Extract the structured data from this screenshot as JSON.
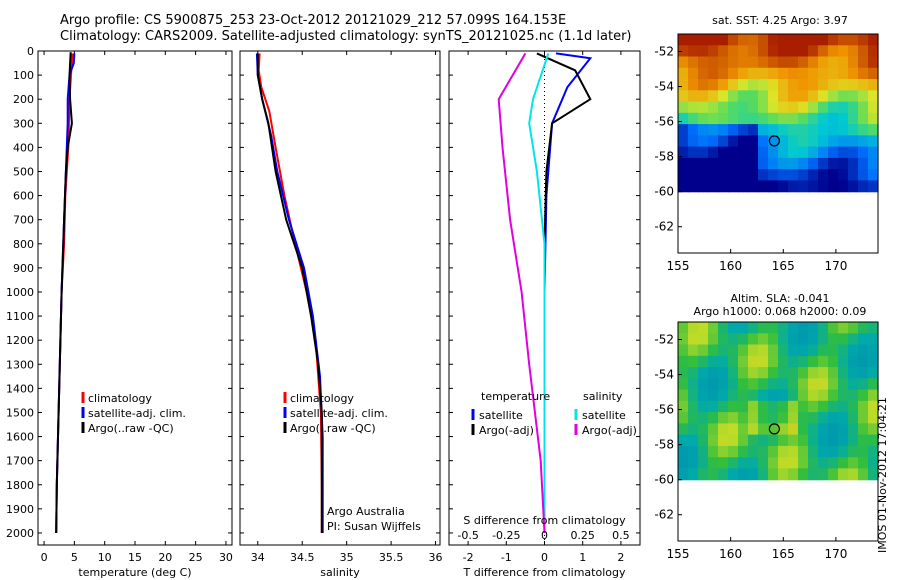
{
  "header": {
    "line1": "Argo profile: CS 5900875_253 23-Oct-2012 20121029_212 57.099S 164.153E",
    "line2": "Climatology: CARS2009. Satellite-adjusted climatology: synTS_20121025.nc (1.1d later)"
  },
  "footer_credit": "IMOS 01-Nov-2012 17:04:21",
  "colors": {
    "climatology": "#ff0000",
    "satellite": "#0000ff",
    "argo": "#000000",
    "sal_satellite": "#00e5e5",
    "sal_argo": "#e000e0"
  },
  "chart_data": [
    {
      "id": "temperature",
      "type": "line",
      "xlabel": "temperature (deg C)",
      "ylabel": "",
      "xlim": [
        -1,
        31
      ],
      "ylim": [
        2050,
        0
      ],
      "x_ticks": [
        0,
        5,
        10,
        15,
        20,
        25,
        30
      ],
      "y_ticks": [
        0,
        100,
        200,
        300,
        400,
        500,
        600,
        700,
        800,
        900,
        1000,
        1100,
        1200,
        1300,
        1400,
        1500,
        1600,
        1700,
        1800,
        1900,
        2000
      ],
      "grid": false,
      "legend": [
        "climatology",
        "satellite-adj. clim.",
        "Argo(..raw -QC)"
      ],
      "legend_placement": "lower-center",
      "series": [
        {
          "name": "climatology",
          "color": "#ff0000",
          "points": [
            [
              4.7,
              10
            ],
            [
              4.5,
              80
            ],
            [
              4.2,
              200
            ],
            [
              4.0,
              400
            ],
            [
              3.5,
              600
            ],
            [
              3.3,
              800
            ],
            [
              2.9,
              1000
            ],
            [
              2.6,
              1300
            ],
            [
              2.3,
              1600
            ],
            [
              2.1,
              1800
            ],
            [
              2.0,
              2000
            ]
          ]
        },
        {
          "name": "satellite-adj. clim.",
          "color": "#0000ff",
          "points": [
            [
              5.0,
              10
            ],
            [
              4.9,
              50
            ],
            [
              4.2,
              100
            ],
            [
              3.9,
              200
            ],
            [
              3.9,
              300
            ],
            [
              3.6,
              500
            ],
            [
              3.3,
              700
            ],
            [
              2.9,
              1000
            ],
            [
              2.6,
              1300
            ],
            [
              2.3,
              1600
            ],
            [
              2.1,
              1800
            ],
            [
              2.0,
              2000
            ]
          ]
        },
        {
          "name": "Argo(..raw -QC)",
          "color": "#000000",
          "points": [
            [
              4.4,
              5
            ],
            [
              4.2,
              100
            ],
            [
              4.3,
              200
            ],
            [
              4.6,
              300
            ],
            [
              3.9,
              400
            ],
            [
              3.6,
              500
            ],
            [
              3.3,
              700
            ],
            [
              2.9,
              1000
            ],
            [
              2.6,
              1300
            ],
            [
              2.3,
              1600
            ],
            [
              2.1,
              1800
            ],
            [
              2.0,
              2000
            ]
          ]
        }
      ]
    },
    {
      "id": "salinity",
      "type": "line",
      "xlabel": "salinity",
      "ylabel": "",
      "xlim": [
        33.8,
        36.05
      ],
      "ylim": [
        2050,
        0
      ],
      "x_ticks": [
        34,
        34.5,
        35,
        35.5,
        36
      ],
      "grid": false,
      "legend": [
        "climatology",
        "satellite-adj. clim.",
        "Argo(..raw -QC)"
      ],
      "legend_placement": "lower-center",
      "annotation": [
        "Argo Australia",
        "PI: Susan Wijffels"
      ],
      "series": [
        {
          "name": "climatology",
          "color": "#ff0000",
          "points": [
            [
              34.02,
              10
            ],
            [
              34.01,
              80
            ],
            [
              34.04,
              150
            ],
            [
              34.13,
              250
            ],
            [
              34.2,
              400
            ],
            [
              34.3,
              600
            ],
            [
              34.42,
              800
            ],
            [
              34.55,
              1000
            ],
            [
              34.65,
              1200
            ],
            [
              34.71,
              1500
            ],
            [
              34.72,
              1800
            ],
            [
              34.72,
              2000
            ]
          ]
        },
        {
          "name": "satellite-adj. clim.",
          "color": "#0000ff",
          "points": [
            [
              33.99,
              10
            ],
            [
              34.0,
              100
            ],
            [
              34.05,
              200
            ],
            [
              34.15,
              350
            ],
            [
              34.22,
              500
            ],
            [
              34.35,
              700
            ],
            [
              34.52,
              900
            ],
            [
              34.62,
              1100
            ],
            [
              34.7,
              1350
            ],
            [
              34.73,
              1600
            ],
            [
              34.73,
              1800
            ],
            [
              34.73,
              2000
            ]
          ]
        },
        {
          "name": "Argo(..raw -QC)",
          "color": "#000000",
          "points": [
            [
              34.0,
              10
            ],
            [
              34.0,
              100
            ],
            [
              34.05,
              200
            ],
            [
              34.12,
              300
            ],
            [
              34.2,
              500
            ],
            [
              34.32,
              700
            ],
            [
              34.5,
              900
            ],
            [
              34.6,
              1100
            ],
            [
              34.68,
              1300
            ],
            [
              34.72,
              1500
            ],
            [
              34.72,
              1800
            ],
            [
              34.72,
              2000
            ]
          ]
        }
      ]
    },
    {
      "id": "difference",
      "type": "line",
      "xlabel": "T difference from climatology",
      "x2label": "S difference from climatology",
      "ylabel": "",
      "xlim": [
        -2.5,
        2.5
      ],
      "ylim": [
        2050,
        0
      ],
      "x_ticks": [
        -2,
        -1,
        0,
        1,
        2
      ],
      "x2_ticks": [
        "-0.5",
        "-0.25",
        "0",
        "0.25",
        "0.5"
      ],
      "grid": false,
      "legend_title_left": "temperature",
      "legend_title_right": "salinity",
      "legend": [
        "satellite",
        "Argo(-adj)",
        "satellite",
        "Argo(-adj)"
      ],
      "legend_placement": "lower-center",
      "series": [
        {
          "name": "satellite",
          "color": "#0000ff",
          "points": [
            [
              0.3,
              10
            ],
            [
              1.2,
              30
            ],
            [
              0.6,
              150
            ],
            [
              0.2,
              300
            ],
            [
              0.05,
              600
            ],
            [
              0,
              1000
            ],
            [
              0,
              1500
            ],
            [
              0,
              2000
            ]
          ]
        },
        {
          "name": "Argo(-adj)",
          "color": "#000000",
          "points": [
            [
              -0.2,
              10
            ],
            [
              0.8,
              80
            ],
            [
              1.2,
              200
            ],
            [
              0.2,
              300
            ],
            [
              0.05,
              500
            ],
            [
              0,
              800
            ],
            [
              0,
              1500
            ],
            [
              0,
              2000
            ]
          ]
        },
        {
          "name": "satellite",
          "color": "#00e5e5",
          "points": [
            [
              0.1,
              10
            ],
            [
              -0.3,
              200
            ],
            [
              -0.4,
              300
            ],
            [
              -0.2,
              500
            ],
            [
              0,
              800
            ],
            [
              0,
              1200
            ],
            [
              0,
              2000
            ]
          ]
        },
        {
          "name": "Argo(-adj)",
          "color": "#e000e0",
          "points": [
            [
              -0.5,
              10
            ],
            [
              -1.2,
              200
            ],
            [
              -1.1,
              400
            ],
            [
              -0.9,
              700
            ],
            [
              -0.6,
              1000
            ],
            [
              -0.4,
              1300
            ],
            [
              -0.1,
              1700
            ],
            [
              0,
              2000
            ]
          ]
        }
      ]
    },
    {
      "id": "sst-map",
      "type": "heatmap",
      "title": "sat. SST: 4.25 Argo: 3.97",
      "xlim": [
        155,
        174
      ],
      "ylim": [
        -63.5,
        -51
      ],
      "x_ticks": [
        155,
        160,
        165,
        170
      ],
      "y_ticks": [
        -52,
        -54,
        -56,
        -58,
        -60,
        -62
      ],
      "argo_position": [
        164.153,
        -57.099
      ]
    },
    {
      "id": "sla-map",
      "type": "heatmap",
      "title": "Altim. SLA: -0.041",
      "subtitle": "Argo h1000: 0.068 h2000: 0.09",
      "xlim": [
        155,
        174
      ],
      "ylim": [
        -63.5,
        -51
      ],
      "x_ticks": [
        155,
        160,
        165,
        170
      ],
      "y_ticks": [
        -52,
        -54,
        -56,
        -58,
        -60,
        -62
      ],
      "argo_position": [
        164.153,
        -57.099
      ]
    }
  ]
}
